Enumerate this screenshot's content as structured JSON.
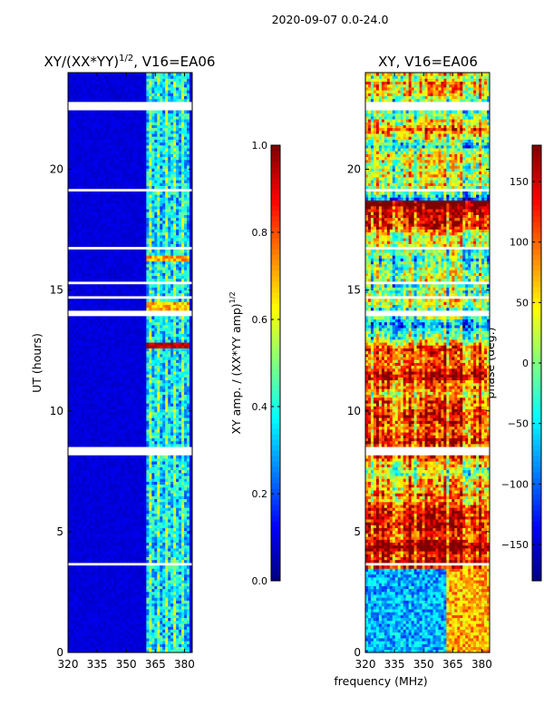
{
  "suptitle": "2020-09-07 0.0-24.0",
  "chart_data": [
    {
      "type": "heatmap",
      "title": "XY/(XX*YY)^{1/2}, V16=EA06",
      "title_main": "XY/(XX*YY)",
      "title_sup": "1/2",
      "title_tail": ", V16=EA06",
      "xlabel": "",
      "ylabel": "UT (hours)",
      "xlim": [
        320,
        384
      ],
      "ylim": [
        0,
        24
      ],
      "xticks": [
        320,
        335,
        350,
        365,
        380
      ],
      "yticks": [
        0,
        5,
        10,
        15,
        20
      ],
      "colormap": "jet",
      "colorbar": {
        "label": "XY amp. / (XX*YY amp)^{1/2}",
        "label_main": "XY amp. / (XX*YY amp)",
        "label_sup": "1/2",
        "range": [
          0.0,
          1.0
        ],
        "ticks": [
          "0.0",
          "0.2",
          "0.4",
          "0.6",
          "0.8",
          "1.0"
        ],
        "tick_values": [
          0.0,
          0.2,
          0.4,
          0.6,
          0.8,
          1.0
        ]
      },
      "flagged_ut_hours": [
        [
          3.55,
          3.75
        ],
        [
          8.2,
          8.55
        ],
        [
          13.95,
          14.1
        ],
        [
          14.6,
          14.75
        ],
        [
          15.2,
          15.3
        ],
        [
          16.7,
          16.85
        ],
        [
          19.1,
          19.2
        ],
        [
          22.4,
          22.75
        ]
      ],
      "bright_band_mhz": [
        360,
        382
      ],
      "peak_ut_hours": [
        12.6,
        12.8
      ]
    },
    {
      "type": "heatmap",
      "title": "XY, V16=EA06",
      "xlabel": "frequency (MHz)",
      "ylabel": "",
      "xlim": [
        320,
        384
      ],
      "ylim": [
        0,
        24
      ],
      "xticks": [
        320,
        335,
        350,
        365,
        380
      ],
      "yticks": [
        0,
        5,
        10,
        15,
        20
      ],
      "colormap": "jet",
      "colorbar": {
        "label": "phase (deg.)",
        "range": [
          -180,
          180
        ],
        "ticks": [
          "−150",
          "−100",
          "−50",
          "0",
          "50",
          "100",
          "150"
        ],
        "tick_values": [
          -150,
          -100,
          -50,
          0,
          50,
          100,
          150
        ]
      },
      "flagged_ut_hours": [
        [
          3.55,
          3.75
        ],
        [
          8.2,
          8.55
        ],
        [
          13.95,
          14.1
        ],
        [
          14.6,
          14.75
        ],
        [
          15.2,
          15.3
        ],
        [
          16.7,
          16.85
        ],
        [
          19.1,
          19.2
        ],
        [
          22.4,
          22.75
        ]
      ]
    }
  ]
}
